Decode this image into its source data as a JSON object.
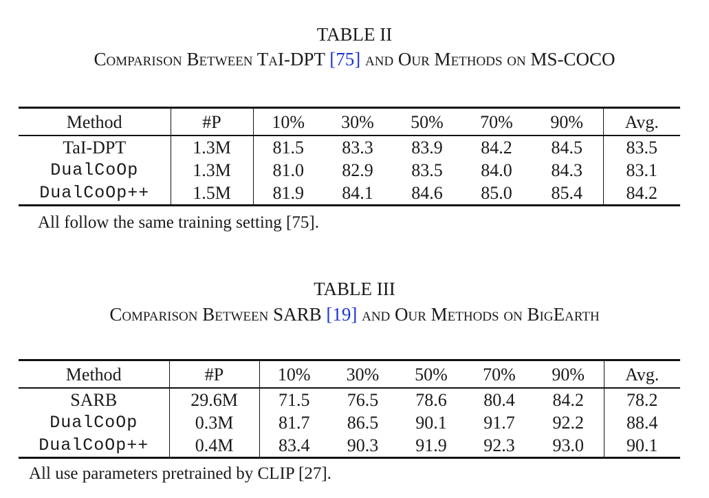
{
  "table2": {
    "label": "TABLE II",
    "caption_pre": "Comparison Between TaI-DPT ",
    "caption_cite": "[75]",
    "caption_post": " and Our Methods on MS-COCO",
    "headers": [
      "Method",
      "#P",
      "10%",
      "30%",
      "50%",
      "70%",
      "90%",
      "Avg."
    ],
    "rows": [
      {
        "method": "TaI-DPT",
        "params": "1.3M",
        "values": [
          "81.5",
          "83.3",
          "83.9",
          "84.2",
          "84.5"
        ],
        "avg": "83.5"
      },
      {
        "method": "DualCoOp",
        "params": "1.3M",
        "values": [
          "81.0",
          "82.9",
          "83.5",
          "84.0",
          "84.3"
        ],
        "avg": "83.1"
      },
      {
        "method": "DualCoOp++",
        "params": "1.5M",
        "values": [
          "81.9",
          "84.1",
          "84.6",
          "85.0",
          "85.4"
        ],
        "avg": "84.2"
      }
    ],
    "note": "All follow the same training setting [75]."
  },
  "table3": {
    "label": "TABLE III",
    "caption_pre": "Comparison Between SARB ",
    "caption_cite": "[19]",
    "caption_post": " and Our Methods on BigEarth",
    "headers": [
      "Method",
      "#P",
      "10%",
      "30%",
      "50%",
      "70%",
      "90%",
      "Avg."
    ],
    "rows": [
      {
        "method": "SARB",
        "params": "29.6M",
        "values": [
          "71.5",
          "76.5",
          "78.6",
          "80.4",
          "84.2"
        ],
        "avg": "78.2"
      },
      {
        "method": "DualCoOp",
        "params": "0.3M",
        "values": [
          "81.7",
          "86.5",
          "90.1",
          "91.7",
          "92.2"
        ],
        "avg": "88.4"
      },
      {
        "method": "DualCoOp++",
        "params": "0.4M",
        "values": [
          "83.4",
          "90.3",
          "91.9",
          "92.3",
          "93.0"
        ],
        "avg": "90.1"
      }
    ],
    "note": "All use parameters pretrained by CLIP [27]."
  }
}
